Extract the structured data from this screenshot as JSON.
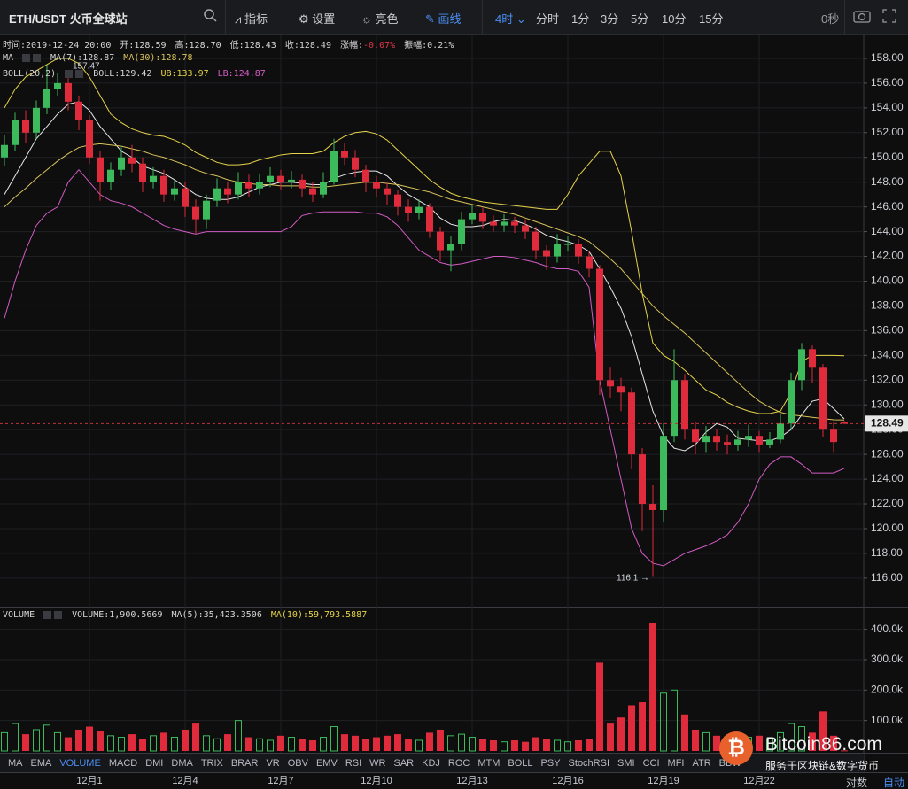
{
  "toolbar": {
    "pair": "ETH/USDT",
    "exchange": "火币全球站",
    "tools": [
      "指标",
      "设置",
      "亮色",
      "画线"
    ],
    "periods": [
      "4时",
      "分时",
      "1分",
      "3分",
      "5分",
      "10分",
      "15分"
    ],
    "timer": "0秒"
  },
  "info": {
    "time": "时间:2019-12-24 20:00",
    "open": "开:128.59",
    "high": "高:128.70",
    "low": "低:128.43",
    "close": "收:128.49",
    "change_label": "涨幅:",
    "change": "-0.07%",
    "amplitude": "振幅:0.21%"
  },
  "ma_legend": {
    "name": "MA",
    "ma7": "MA(7):128.87",
    "ma30": "MA(30):128.78"
  },
  "boll_legend": {
    "name": "BOLL(20,2)",
    "boll": "BOLL:129.42",
    "ub": "UB:133.97",
    "lb": "LB:124.87"
  },
  "volume_legend": {
    "name": "VOLUME",
    "volume": "VOLUME:1,900.5669",
    "ma5": "MA(5):35,423.3506",
    "ma10": "MA(10):59,793.5887"
  },
  "tabs": [
    "MA",
    "EMA",
    "VOLUME",
    "MACD",
    "DMI",
    "DMA",
    "TRIX",
    "BRAR",
    "VR",
    "OBV",
    "EMV",
    "RSI",
    "WR",
    "SAR",
    "KDJ",
    "ROC",
    "MTM",
    "BOLL",
    "PSY",
    "StochRSI",
    "SMI",
    "CCI",
    "MFI",
    "ATR",
    "BBW"
  ],
  "active_tab": 2,
  "bottom_right": [
    "对数",
    "自动"
  ],
  "watermark": {
    "title": "Bitcoin86.com",
    "subtitle": "服务于区块链&数字货币"
  },
  "chart_data": [
    {
      "type": "candlestick",
      "up_color": "#3dbb5c",
      "down_color": "#e02b3c",
      "categories": [
        null,
        null,
        null,
        null,
        null,
        null,
        null,
        null,
        "12月1",
        null,
        null,
        null,
        null,
        null,
        null,
        null,
        null,
        "12月4",
        null,
        null,
        null,
        null,
        null,
        null,
        null,
        null,
        "12月7",
        null,
        null,
        null,
        null,
        null,
        null,
        null,
        null,
        "12月10",
        null,
        null,
        null,
        null,
        null,
        null,
        null,
        null,
        "12月13",
        null,
        null,
        null,
        null,
        null,
        null,
        null,
        null,
        "12月16",
        null,
        null,
        null,
        null,
        null,
        null,
        null,
        null,
        "12月19",
        null,
        null,
        null,
        null,
        null,
        null,
        null,
        null,
        "12月22",
        null,
        null,
        null,
        null,
        null,
        null,
        null,
        null
      ],
      "open": [
        150,
        151,
        153,
        152,
        154,
        155.5,
        156,
        154.5,
        153,
        150,
        148,
        149,
        150,
        149.5,
        148,
        148.5,
        147,
        147.5,
        146,
        145,
        146.5,
        147.5,
        147,
        148,
        147.5,
        148,
        148.5,
        148,
        148.2,
        147.5,
        147,
        148,
        150.5,
        150,
        149,
        148,
        147.5,
        147,
        146,
        145.5,
        146,
        144,
        142.5,
        143,
        145,
        145.5,
        144.8,
        144.5,
        144.8,
        144.5,
        144,
        142.5,
        142,
        143,
        143,
        142,
        141,
        132,
        131.5,
        131,
        126,
        122,
        121.5,
        127.5,
        132,
        128,
        127,
        127.5,
        127,
        126.8,
        127.2,
        127.5,
        126.8,
        127.2,
        128.5,
        132,
        134.5,
        133,
        128,
        128.59
      ],
      "high": [
        151.8,
        153.6,
        153.8,
        154.6,
        157.47,
        156.8,
        156.4,
        155,
        153.4,
        150.5,
        149.6,
        150.8,
        151,
        150,
        149.2,
        149,
        148.2,
        148,
        146.6,
        147,
        148.3,
        148,
        148.8,
        148.6,
        148.7,
        149.2,
        149,
        148.9,
        148.6,
        148,
        148.8,
        151.5,
        151.2,
        150.6,
        149.4,
        148.5,
        148,
        147.4,
        146.6,
        146.6,
        146.3,
        144.4,
        143.6,
        145.6,
        146.2,
        146,
        145.3,
        145.4,
        145.2,
        145,
        144.4,
        142.9,
        143.8,
        143.6,
        143.4,
        142.4,
        141.3,
        133,
        132.2,
        131.4,
        126.5,
        123.5,
        128.5,
        134.5,
        132.5,
        128.6,
        128.3,
        128,
        127.6,
        127.9,
        128.4,
        127.9,
        127.8,
        129.3,
        132.6,
        135,
        134.8,
        133.3,
        128.6,
        128.7
      ],
      "low": [
        149.3,
        150.5,
        151.2,
        151.5,
        153.5,
        155,
        153.8,
        152.2,
        149.5,
        146.5,
        147.4,
        148.5,
        148.8,
        147.2,
        147.5,
        146.4,
        146.5,
        145.2,
        143.8,
        144.2,
        146,
        146.3,
        146.6,
        146.8,
        147,
        147.6,
        147.4,
        147.5,
        146.8,
        146.4,
        146.7,
        147.8,
        149.4,
        148.4,
        147.2,
        146.8,
        146.2,
        145.3,
        144.8,
        145,
        143.5,
        141.6,
        140.8,
        142.5,
        144.6,
        144.2,
        144,
        144,
        143.9,
        143.4,
        141.8,
        140.9,
        141.5,
        142.4,
        141.4,
        140.3,
        130.8,
        130.6,
        129.5,
        124.8,
        119.8,
        116.1,
        120.5,
        127,
        127.2,
        126,
        126.2,
        126.3,
        126,
        126.3,
        126.6,
        126.2,
        126.5,
        126.9,
        128,
        131.2,
        131.8,
        127.4,
        126.2,
        128.43
      ],
      "close": [
        151,
        153,
        152,
        154,
        155.5,
        156,
        154.5,
        153,
        150,
        148,
        149,
        150,
        149.5,
        148,
        148.5,
        147,
        147.5,
        146,
        145,
        146.5,
        147.5,
        147,
        148,
        147.5,
        148,
        148.5,
        148,
        148.2,
        147.5,
        147,
        148,
        150.5,
        150,
        149,
        148,
        147.5,
        147,
        146,
        145.5,
        146,
        144,
        142.5,
        143,
        145,
        145.5,
        144.8,
        144.5,
        144.8,
        144.5,
        144,
        142.5,
        142,
        143,
        143,
        142,
        141,
        132,
        131.5,
        131,
        126,
        122,
        121.5,
        127.5,
        132,
        128,
        127,
        127.5,
        127,
        126.8,
        127.2,
        127.5,
        126.8,
        127.2,
        128.5,
        132,
        134.5,
        133,
        128,
        127,
        128.49
      ],
      "lines": [
        {
          "color": "#e8e8e8",
          "values": [
            147,
            148.5,
            150,
            151.5,
            152.5,
            153.5,
            154.3,
            154.5,
            153.8,
            152.5,
            151.5,
            150.5,
            150,
            149.3,
            149,
            148.7,
            148.2,
            147.6,
            147,
            146.7,
            146.6,
            146.6,
            146.8,
            147.2,
            147.6,
            147.8,
            148,
            148,
            147.9,
            147.8,
            147.8,
            148.3,
            148.6,
            148.8,
            148.9,
            148.9,
            148.5,
            147.7,
            147,
            146.5,
            146,
            145.1,
            144.6,
            144.4,
            144.4,
            144.5,
            144.8,
            145,
            144.9,
            144.6,
            144.2,
            143.7,
            143.4,
            143.2,
            142.9,
            142.4,
            141,
            139.5,
            137.8,
            135.5,
            132.5,
            129.5,
            127.5,
            126.5,
            126.3,
            126.8,
            127.8,
            128.5,
            128.2,
            127.3,
            127.2,
            127.1,
            127.1,
            127.4,
            128,
            129.2,
            130.3,
            130.5,
            129.7,
            128.87
          ]
        },
        {
          "color": "#d9c35a",
          "values": [
            146,
            146.8,
            147.5,
            148.3,
            149,
            149.7,
            150.3,
            150.8,
            151,
            151.1,
            151,
            150.9,
            150.7,
            150.5,
            150.2,
            150,
            149.7,
            149.4,
            149,
            148.7,
            148.5,
            148.2,
            148,
            147.9,
            147.8,
            147.8,
            147.7,
            147.7,
            147.7,
            147.6,
            147.6,
            147.7,
            147.8,
            147.9,
            148,
            148,
            147.9,
            147.8,
            147.6,
            147.4,
            147.2,
            146.9,
            146.6,
            146.4,
            146.2,
            146,
            145.8,
            145.6,
            145.4,
            145.1,
            144.8,
            144.5,
            144.2,
            143.9,
            143.6,
            143.2,
            142.5,
            141.8,
            141,
            140,
            139,
            138,
            137.2,
            136.5,
            135.8,
            135,
            134.2,
            133.4,
            132.6,
            131.8,
            131,
            130.3,
            129.8,
            129.4,
            129.2,
            129.1,
            129,
            128.9,
            128.8,
            128.78
          ]
        },
        {
          "color": "#e6d34a",
          "values": [
            154,
            155.5,
            156.5,
            157,
            157.5,
            158,
            158,
            157.6,
            156.5,
            155,
            153.5,
            152.8,
            152.3,
            152,
            151.8,
            151.7,
            151.4,
            151,
            150.4,
            150,
            149.6,
            149.4,
            149.4,
            149.5,
            149.8,
            150,
            150.2,
            150.3,
            150.3,
            150.3,
            150.5,
            151.2,
            151.7,
            152,
            152.1,
            151.9,
            151.4,
            150.6,
            149.8,
            149,
            148.2,
            147.6,
            147.1,
            146.8,
            146.6,
            146.4,
            146.3,
            146.2,
            146.1,
            146,
            145.9,
            145.8,
            145.8,
            147,
            148.5,
            149.5,
            150.5,
            150.5,
            148.5,
            144,
            139,
            135,
            134,
            133.5,
            132.8,
            132,
            131.2,
            130.8,
            130.2,
            129.8,
            129.5,
            129.3,
            129.3,
            129.5,
            131,
            133.5,
            134,
            134,
            134,
            133.97
          ]
        },
        {
          "color": "#d25bc4",
          "values": [
            137,
            140,
            142.5,
            144.5,
            145.5,
            146,
            148,
            149,
            148,
            147,
            146.5,
            146.3,
            146,
            145.5,
            145,
            144.5,
            144.2,
            144,
            143.8,
            144,
            144,
            144,
            144,
            144,
            144,
            144,
            144,
            144.4,
            145.3,
            145.5,
            145.6,
            145.6,
            145.6,
            145.6,
            145.5,
            145.5,
            145.2,
            144.5,
            143.5,
            142.5,
            142,
            141.5,
            141.3,
            141.4,
            141.6,
            141.8,
            142,
            142,
            141.9,
            141.7,
            141.5,
            141.2,
            141,
            141,
            140.8,
            139.5,
            132,
            128,
            124,
            120,
            118,
            117.2,
            117,
            117.5,
            118,
            118.3,
            118.6,
            119,
            119.5,
            120.5,
            122,
            124,
            125.2,
            125.8,
            125.8,
            125.2,
            124.5,
            124.5,
            124.5,
            124.87
          ]
        }
      ],
      "ylim": [
        113.7,
        160
      ],
      "yticks": [
        {
          "value": 116,
          "label": "116.00"
        },
        {
          "value": 118,
          "label": "118.00"
        },
        {
          "value": 120,
          "label": "120.00"
        },
        {
          "value": 122,
          "label": "122.00"
        },
        {
          "value": 124,
          "label": "124.00"
        },
        {
          "value": 126,
          "label": "126.00"
        },
        {
          "value": 128,
          "label": "128.00"
        },
        {
          "value": 130,
          "label": "130.00"
        },
        {
          "value": 132,
          "label": "132.00"
        },
        {
          "value": 134,
          "label": "134.00"
        },
        {
          "value": 136,
          "label": "136.00"
        },
        {
          "value": 138,
          "label": "138.00"
        },
        {
          "value": 140,
          "label": "140.00"
        },
        {
          "value": 142,
          "label": "142.00"
        },
        {
          "value": 144,
          "label": "144.00"
        },
        {
          "value": 146,
          "label": "146.00"
        },
        {
          "value": 148,
          "label": "148.00"
        },
        {
          "value": 150,
          "label": "150.00"
        },
        {
          "value": 152,
          "label": "152.00"
        },
        {
          "value": 154,
          "label": "154.00"
        },
        {
          "value": 156,
          "label": "156.00"
        },
        {
          "value": 158,
          "label": "158.00"
        }
      ],
      "grid": true,
      "last_price": 128.49,
      "annotations": [
        "157.47",
        "116.1 →"
      ]
    },
    {
      "type": "bar",
      "values": [
        60000,
        90000,
        55000,
        70000,
        85000,
        60000,
        45000,
        70000,
        80000,
        65000,
        50000,
        45000,
        55000,
        40000,
        50000,
        60000,
        45000,
        70000,
        90000,
        50000,
        40000,
        55000,
        100000,
        45000,
        40000,
        35000,
        50000,
        45000,
        40000,
        35000,
        45000,
        80000,
        55000,
        50000,
        40000,
        45000,
        50000,
        55000,
        40000,
        35000,
        60000,
        70000,
        50000,
        55000,
        45000,
        40000,
        35000,
        30000,
        35000,
        30000,
        45000,
        40000,
        35000,
        30000,
        35000,
        40000,
        290000,
        90000,
        110000,
        150000,
        160000,
        420000,
        190000,
        200000,
        120000,
        70000,
        60000,
        50000,
        45000,
        40000,
        45000,
        50000,
        40000,
        60000,
        90000,
        80000,
        60000,
        130000,
        50000,
        1900.5669
      ],
      "ylim": [
        0,
        460000
      ],
      "yticks": [
        {
          "value": 100000,
          "label": "100.0k"
        },
        {
          "value": 200000,
          "label": "200.0k"
        },
        {
          "value": 300000,
          "label": "300.0k"
        },
        {
          "value": 400000,
          "label": "400.0k"
        }
      ],
      "grid": true
    }
  ]
}
